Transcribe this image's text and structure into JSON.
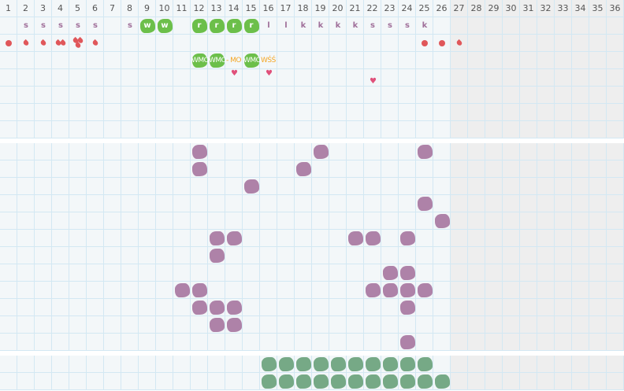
{
  "days": [
    "1",
    "2",
    "3",
    "4",
    "5",
    "6",
    "7",
    "8",
    "9",
    "10",
    "11",
    "12",
    "13",
    "14",
    "15",
    "16",
    "17",
    "18",
    "19",
    "20",
    "21",
    "22",
    "23",
    "24",
    "25",
    "26",
    "27",
    "28",
    "29",
    "30",
    "31",
    "32",
    "33",
    "34",
    "35",
    "36"
  ],
  "greyed_from_day": 27,
  "colors": {
    "grid": "#d3e8f3",
    "cell": "#f3f7f9",
    "greyed": "#eeeeee",
    "letter": "#a0709a",
    "green_mark": "#6cbf4a",
    "purple_mark": "#ae82a8",
    "sage_mark": "#76a986",
    "flow": "#e0575a",
    "heart": "#e0507a",
    "note_orange": "#f5a623"
  },
  "top": {
    "row_count": 7,
    "letters": [
      {
        "day": 2,
        "text": "s"
      },
      {
        "day": 3,
        "text": "s"
      },
      {
        "day": 4,
        "text": "s"
      },
      {
        "day": 5,
        "text": "s"
      },
      {
        "day": 6,
        "text": "s"
      },
      {
        "day": 8,
        "text": "s"
      },
      {
        "day": 9,
        "text": "w",
        "highlight": true
      },
      {
        "day": 10,
        "text": "w",
        "highlight": true
      },
      {
        "day": 12,
        "text": "r",
        "highlight": true
      },
      {
        "day": 13,
        "text": "r",
        "highlight": true
      },
      {
        "day": 14,
        "text": "r",
        "highlight": true
      },
      {
        "day": 15,
        "text": "r",
        "highlight": true
      },
      {
        "day": 16,
        "text": "l"
      },
      {
        "day": 17,
        "text": "l"
      },
      {
        "day": 18,
        "text": "k"
      },
      {
        "day": 19,
        "text": "k"
      },
      {
        "day": 20,
        "text": "k"
      },
      {
        "day": 21,
        "text": "k"
      },
      {
        "day": 22,
        "text": "s"
      },
      {
        "day": 23,
        "text": "s"
      },
      {
        "day": 24,
        "text": "s"
      },
      {
        "day": 25,
        "text": "k"
      }
    ],
    "flow": [
      {
        "day": 1,
        "icon": "dot-icon",
        "count": 1
      },
      {
        "day": 2,
        "icon": "drop-icon",
        "count": 1
      },
      {
        "day": 3,
        "icon": "drop-icon",
        "count": 1
      },
      {
        "day": 4,
        "icon": "drop-icon",
        "count": 2
      },
      {
        "day": 5,
        "icon": "drop-icon",
        "count": 3
      },
      {
        "day": 6,
        "icon": "drop-icon",
        "count": 1
      },
      {
        "day": 25,
        "icon": "dot-icon",
        "count": 1
      },
      {
        "day": 26,
        "icon": "dot-icon",
        "count": 1
      },
      {
        "day": 27,
        "icon": "drop-icon",
        "count": 1
      }
    ],
    "notes": [
      {
        "day": 12,
        "text": "WMO",
        "highlight": true
      },
      {
        "day": 13,
        "text": "WMO",
        "highlight": true
      },
      {
        "day": 14,
        "text": "- MO",
        "highlight": false
      },
      {
        "day": 15,
        "text": "WMO",
        "highlight": true
      },
      {
        "day": 16,
        "text": "WŚŚ",
        "highlight": false
      }
    ],
    "hearts": [
      {
        "day": 14,
        "icon": "heart-icon"
      },
      {
        "day": 16,
        "icon": "heart-icon"
      },
      {
        "day": 22,
        "icon": "heart-icon",
        "low": true
      }
    ]
  },
  "middle": {
    "rows": [
      [
        12,
        19,
        25
      ],
      [
        12,
        18
      ],
      [
        15
      ],
      [
        25
      ],
      [
        26
      ],
      [
        13,
        14,
        21,
        22,
        24
      ],
      [
        13
      ],
      [
        23,
        24
      ],
      [
        11,
        12,
        22,
        23,
        24,
        25
      ],
      [
        12,
        13,
        14,
        24
      ],
      [
        13,
        14
      ],
      [
        24
      ]
    ]
  },
  "bottom": {
    "rows": [
      [
        16,
        17,
        18,
        19,
        20,
        21,
        22,
        23,
        24,
        25
      ],
      [
        16,
        17,
        18,
        19,
        20,
        21,
        22,
        23,
        24,
        25,
        26
      ]
    ]
  }
}
